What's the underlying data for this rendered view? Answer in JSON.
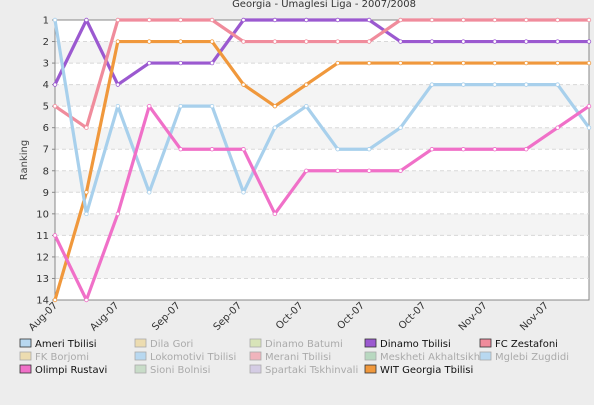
{
  "chart_data": {
    "type": "line",
    "title": "Georgia - Umaglesi Liga - 2007/2008",
    "xlabel": "",
    "ylabel": "Ranking",
    "x": [
      "Aug-07",
      "Aug-07",
      "Aug-07",
      "Sep-07",
      "Sep-07",
      "Sep-07",
      "Oct-07",
      "Oct-07",
      "Oct-07",
      "Oct-07",
      "Nov-07",
      "Nov-07",
      "Nov-07",
      "Nov-07",
      "Nov-07",
      "Nov-07",
      "Dec-07",
      "Dec-07"
    ],
    "x_tick_labels": [
      "Aug-07",
      "Aug-07",
      "Sep-07",
      "Sep-07",
      "Oct-07",
      "Oct-07",
      "Oct-07",
      "Nov-07",
      "Nov-07"
    ],
    "ylim": [
      14,
      1
    ],
    "yticks": [
      1,
      2,
      3,
      4,
      5,
      6,
      7,
      8,
      9,
      10,
      11,
      12,
      13,
      14
    ],
    "y_inverted": true,
    "grid": true,
    "series": [
      {
        "name": "Dinamo Tbilisi",
        "color": "#9b59d0",
        "values": [
          4,
          1,
          4,
          3,
          3,
          3,
          1,
          1,
          1,
          1,
          1,
          2,
          2,
          2,
          2,
          2,
          2,
          2
        ]
      },
      {
        "name": "FC Zestafoni",
        "color": "#f08c9c",
        "values": [
          5,
          6,
          1,
          1,
          1,
          1,
          2,
          2,
          2,
          2,
          2,
          1,
          1,
          1,
          1,
          1,
          1,
          1
        ]
      },
      {
        "name": "WIT Georgia Tbilisi",
        "color": "#f0983c",
        "values": [
          14,
          9,
          2,
          2,
          2,
          2,
          4,
          5,
          4,
          3,
          3,
          3,
          3,
          3,
          3,
          3,
          3,
          3
        ]
      },
      {
        "name": "Mglebi Zugdidi",
        "color": "#a8d0ec",
        "values": [
          1,
          10,
          5,
          9,
          5,
          5,
          9,
          6,
          5,
          7,
          7,
          6,
          4,
          4,
          4,
          4,
          4,
          6
        ]
      },
      {
        "name": "Olimpi Rustavi",
        "color": "#f070c8",
        "values": [
          11,
          14,
          10,
          5,
          7,
          7,
          7,
          10,
          8,
          8,
          8,
          8,
          7,
          7,
          7,
          7,
          6,
          5
        ]
      }
    ],
    "legend": {
      "placement": "bottom",
      "items": [
        {
          "name": "Ameri Tbilisi",
          "color": "#b8d8f0",
          "active": true
        },
        {
          "name": "Dila Gori",
          "color": "#ecdcb0",
          "active": false
        },
        {
          "name": "Dinamo Batumi",
          "color": "#d8e4b8",
          "active": false
        },
        {
          "name": "Dinamo Tbilisi",
          "color": "#9b59d0",
          "active": true
        },
        {
          "name": "FC Zestafoni",
          "color": "#f08c9c",
          "active": true
        },
        {
          "name": "FK Borjomi",
          "color": "#ecdcb0",
          "active": false
        },
        {
          "name": "Lokomotivi Tbilisi",
          "color": "#b8d8f0",
          "active": false
        },
        {
          "name": "Merani Tbilisi",
          "color": "#f0b4bc",
          "active": false
        },
        {
          "name": "Meskheti Akhaltsikhe",
          "color": "#b8d8c0",
          "active": false
        },
        {
          "name": "Mglebi Zugdidi",
          "color": "#b8d8f0",
          "active": false
        },
        {
          "name": "Olimpi Rustavi",
          "color": "#f070c8",
          "active": true
        },
        {
          "name": "Sioni Bolnisi",
          "color": "#c8dcc8",
          "active": false
        },
        {
          "name": "Spartaki Tskhinvali",
          "color": "#d4cce4",
          "active": false
        },
        {
          "name": "WIT Georgia Tbilisi",
          "color": "#f0983c",
          "active": true
        }
      ]
    }
  }
}
